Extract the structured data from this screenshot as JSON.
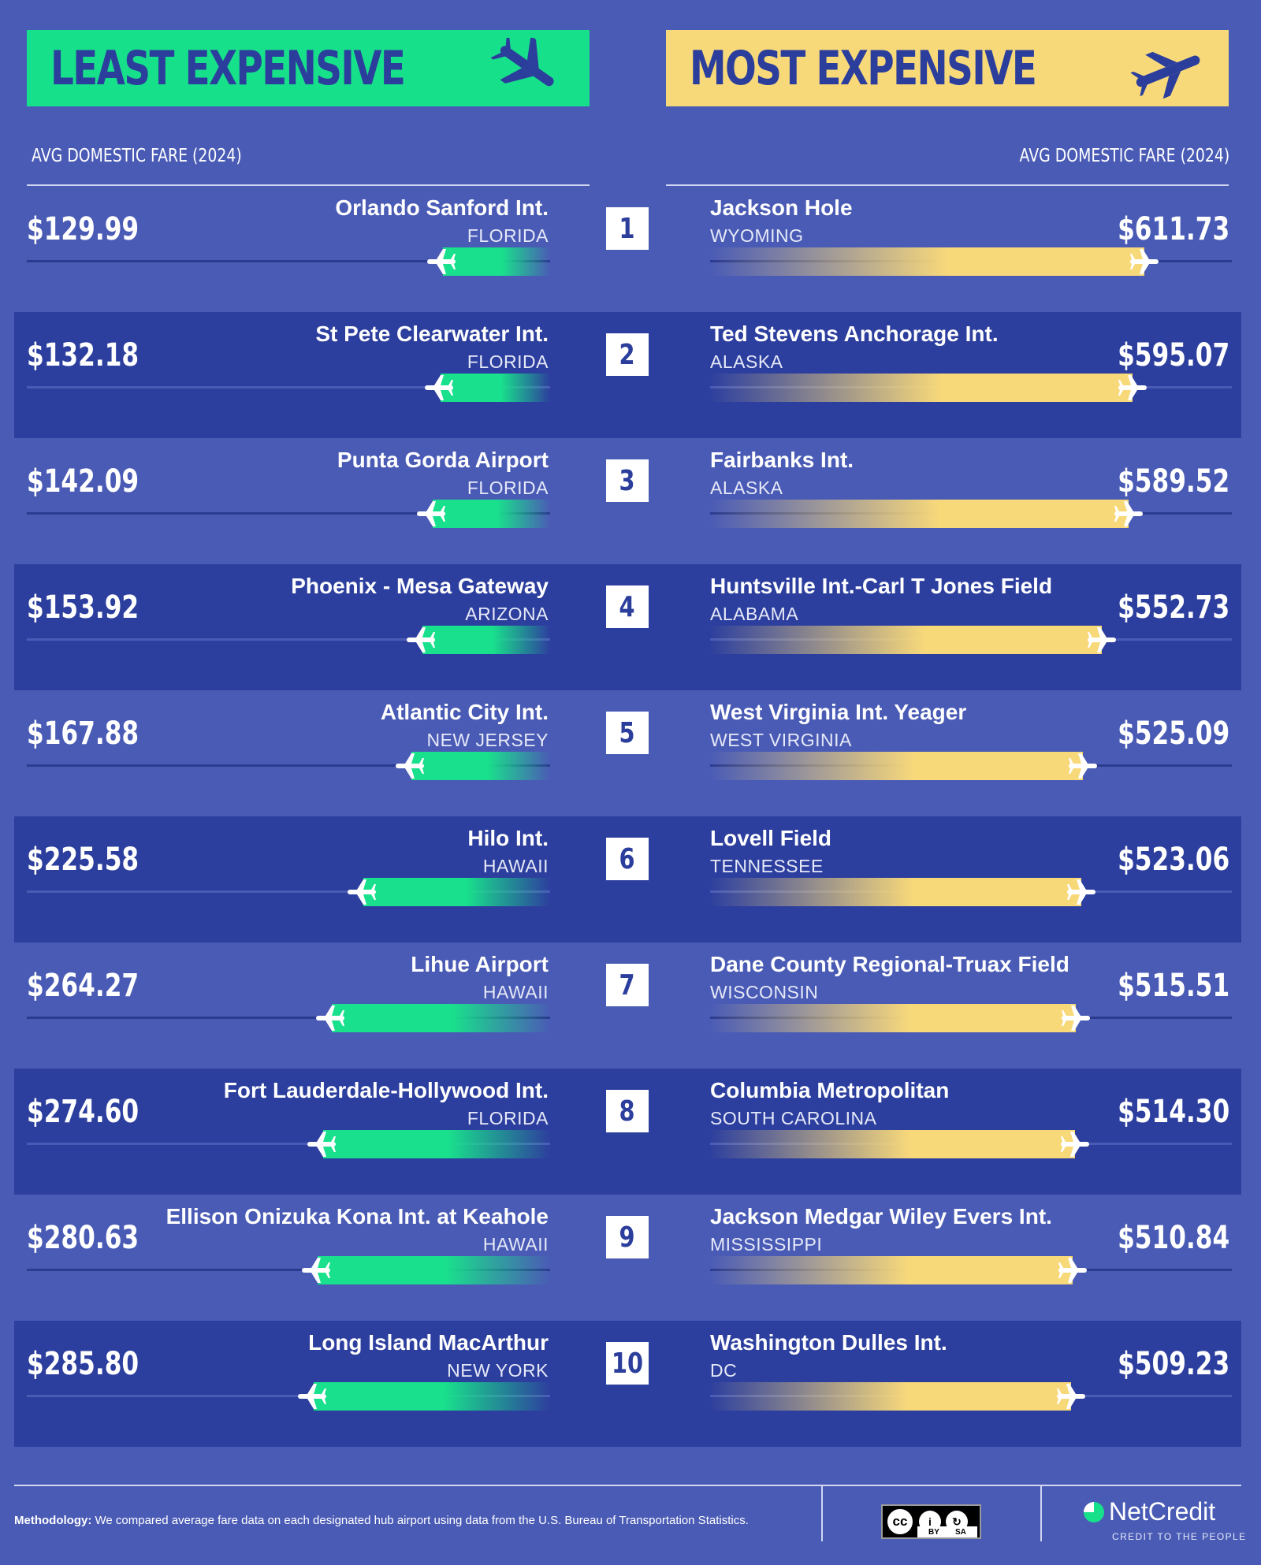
{
  "banners": {
    "least_title": "LEAST EXPENSIVE",
    "most_title": "MOST EXPENSIVE",
    "least_icon": "plane-landing-icon",
    "most_icon": "plane-takeoff-icon"
  },
  "column_header_left": "AVG DOMESTIC FARE (2024)",
  "column_header_right": "AVG DOMESTIC FARE (2024)",
  "colors": {
    "background": "#4a5bb5",
    "band": "#2d3f9e",
    "least_accent": "#17e08b",
    "most_accent": "#f8d97a",
    "title_text": "#2c3e9c"
  },
  "chart_data": [
    {
      "type": "bar",
      "title": "LEAST EXPENSIVE",
      "ylabel": "AVG DOMESTIC FARE (2024)",
      "unit": "$",
      "xlim": [
        0,
        650
      ],
      "categories": [
        "Orlando Sanford Int.",
        "St Pete Clearwater Int.",
        "Punta Gorda Airport",
        "Phoenix - Mesa Gateway",
        "Atlantic City Int.",
        "Hilo Int.",
        "Lihue Airport",
        "Fort Lauderdale-Hollywood Int.",
        "Ellison Onizuka Kona Int. at Keahole",
        "Long Island MacArthur"
      ],
      "states": [
        "FLORIDA",
        "FLORIDA",
        "FLORIDA",
        "ARIZONA",
        "NEW JERSEY",
        "HAWAII",
        "HAWAII",
        "FLORIDA",
        "HAWAII",
        "NEW YORK"
      ],
      "price_labels": [
        "$129.99",
        "$132.18",
        "$142.09",
        "$153.92",
        "$167.88",
        "$225.58",
        "$264.27",
        "$274.60",
        "$280.63",
        "$285.80"
      ],
      "values": [
        129.99,
        132.18,
        142.09,
        153.92,
        167.88,
        225.58,
        264.27,
        274.6,
        280.63,
        285.8
      ]
    },
    {
      "type": "bar",
      "title": "MOST EXPENSIVE",
      "ylabel": "AVG DOMESTIC FARE (2024)",
      "unit": "$",
      "xlim": [
        0,
        650
      ],
      "categories": [
        "Jackson Hole",
        "Ted Stevens Anchorage Int.",
        "Fairbanks Int.",
        "Huntsville Int.-Carl T Jones Field",
        "West Virginia Int. Yeager",
        "Lovell Field",
        "Dane County Regional-Truax Field",
        "Columbia Metropolitan",
        "Jackson Medgar Wiley Evers Int.",
        "Washington Dulles Int."
      ],
      "states": [
        "WYOMING",
        "ALASKA",
        "ALASKA",
        "ALABAMA",
        "WEST VIRGINIA",
        "TENNESSEE",
        "WISCONSIN",
        "SOUTH CAROLINA",
        "MISSISSIPPI",
        "DC"
      ],
      "price_labels": [
        "$611.73",
        "$595.07",
        "$589.52",
        "$552.73",
        "$525.09",
        "$523.06",
        "$515.51",
        "$514.30",
        "$510.84",
        "$509.23"
      ],
      "values": [
        611.73,
        595.07,
        589.52,
        552.73,
        525.09,
        523.06,
        515.51,
        514.3,
        510.84,
        509.23
      ]
    }
  ],
  "ranks": [
    "1",
    "2",
    "3",
    "4",
    "5",
    "6",
    "7",
    "8",
    "9",
    "10"
  ],
  "footer": {
    "methodology_label": "Methodology:",
    "methodology_text": " We compared average fare data on each designated hub airport using data from the U.S. Bureau of Transportation Statistics.",
    "license_icon": "creative-commons-by-sa-icon",
    "license_cc": "cc",
    "license_by": "BY",
    "license_sa": "SA",
    "brand_name": "NetCredit",
    "brand_tagline": "CREDIT TO THE PEOPLE"
  }
}
